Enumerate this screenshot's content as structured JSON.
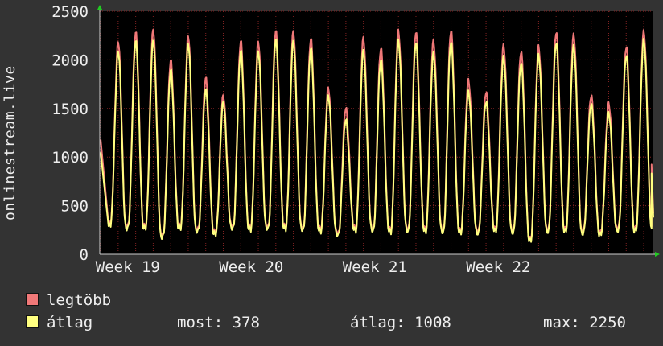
{
  "chart_data": {
    "type": "line",
    "ylabel": "onlinestream.live",
    "ylim": [
      0,
      2500
    ],
    "y_ticks": [
      "0",
      "500",
      "1000",
      "1500",
      "2000",
      "2500"
    ],
    "x_ticks": [
      "Week 19",
      "Week 20",
      "Week 21",
      "Week 22"
    ],
    "grid": true,
    "colors": {
      "background": "#333333",
      "plot_background": "#000000",
      "grid": "#822222",
      "axis": "#cccccc",
      "max_series": "#f07878",
      "avg_series": "#ffff80"
    },
    "daily_peaks": {
      "max": [
        2180,
        2270,
        2300,
        1980,
        2230,
        1800,
        1620,
        2180,
        2170,
        2290,
        2280,
        2210,
        1700,
        1500,
        2220,
        2120,
        2300,
        2290,
        2200,
        2310,
        1800,
        1680,
        2160,
        2100,
        2150,
        2300,
        2270,
        1650,
        1560,
        2150,
        2300
      ],
      "average": [
        2080,
        2180,
        2190,
        1880,
        2150,
        1680,
        1550,
        2080,
        2070,
        2200,
        2180,
        2110,
        1620,
        1380,
        2090,
        2000,
        2200,
        2180,
        2070,
        2190,
        1680,
        1580,
        2040,
        1980,
        2060,
        2190,
        2150,
        1560,
        1460,
        2060,
        2210
      ]
    },
    "daily_troughs": [
      290,
      260,
      260,
      170,
      260,
      230,
      200,
      260,
      250,
      260,
      260,
      250,
      240,
      200,
      250,
      250,
      240,
      250,
      250,
      240,
      240,
      230,
      260,
      240,
      160,
      250,
      260,
      230,
      220,
      260,
      260
    ],
    "start_value": {
      "max": 1180,
      "average": 1050
    },
    "end_value": {
      "max": 420,
      "average": 378
    },
    "series": [
      {
        "name": "legtöbb",
        "color": "#f07878"
      },
      {
        "name": "átlag",
        "color": "#ffff80"
      }
    ]
  },
  "legend": {
    "max_label": "legtöbb",
    "avg_label": "átlag"
  },
  "stats": {
    "now": "most: 378",
    "average": "átlag: 1008",
    "max": "max: 2250"
  }
}
